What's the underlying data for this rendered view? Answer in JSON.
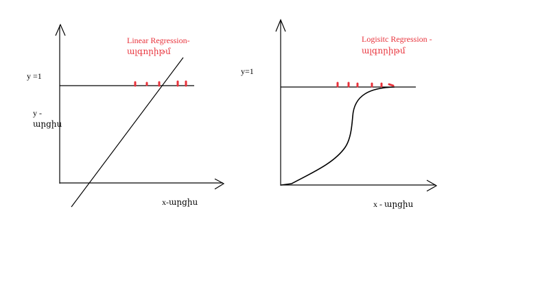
{
  "left_panel": {
    "title_line1": "Linear Regression-",
    "title_line2": "ալգորիթմ",
    "y_one": "y =1",
    "y_label_line1": "y -",
    "y_label_line2": "արցիս",
    "x_label": "x-արցիս"
  },
  "right_panel": {
    "title_line1": "Logisitc Regression -",
    "title_line2": "ալգորիթմ",
    "y_one": "y=1",
    "x_label": "x - արցիս"
  },
  "colors": {
    "ink": "#000000",
    "accent_red": "#e8313a"
  }
}
